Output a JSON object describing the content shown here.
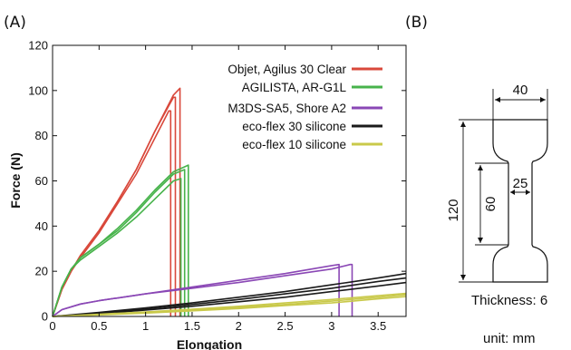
{
  "panel_a_label": "(A)",
  "panel_b_label": "(B)",
  "chart_data": {
    "type": "line",
    "title": "",
    "xlabel": "Elongation",
    "ylabel": "Force (N)",
    "xlim": [
      0,
      3.8
    ],
    "ylim": [
      0,
      120
    ],
    "xticks": [
      "0",
      "0.5",
      "1",
      "1.5",
      "2",
      "2.5",
      "3",
      "3.5"
    ],
    "yticks": [
      "0",
      "20",
      "40",
      "60",
      "80",
      "100",
      "120"
    ],
    "grid": false,
    "legend_position": "top-right",
    "series": [
      {
        "name": "Objet, Agilus 30 Clear",
        "color": "#d9483b",
        "curves": [
          {
            "x": [
              0,
              0.1,
              0.2,
              0.3,
              0.5,
              0.7,
              0.9,
              1.1,
              1.25,
              1.27,
              1.27
            ],
            "y": [
              0,
              12,
              20,
              26,
              37,
              50,
              63,
              79,
              91,
              91,
              0
            ]
          },
          {
            "x": [
              0,
              0.1,
              0.2,
              0.3,
              0.5,
              0.7,
              0.9,
              1.1,
              1.3,
              1.32,
              1.32
            ],
            "y": [
              0,
              12,
              20,
              27,
              38,
              51,
              65,
              82,
              97,
              97,
              0
            ]
          },
          {
            "x": [
              0,
              0.1,
              0.2,
              0.3,
              0.5,
              0.7,
              0.9,
              1.1,
              1.3,
              1.37,
              1.37
            ],
            "y": [
              0,
              12,
              20,
              27,
              38,
              51,
              65,
              82,
              98,
              101,
              0
            ]
          }
        ]
      },
      {
        "name": "AGILISTA, AR-G1L",
        "color": "#47b34b",
        "curves": [
          {
            "x": [
              0,
              0.1,
              0.2,
              0.3,
              0.5,
              0.7,
              0.9,
              1.1,
              1.3,
              1.38,
              1.38
            ],
            "y": [
              0,
              13,
              21,
              25,
              31,
              37,
              44,
              52,
              60,
              61,
              0
            ]
          },
          {
            "x": [
              0,
              0.1,
              0.2,
              0.3,
              0.5,
              0.7,
              0.9,
              1.1,
              1.3,
              1.42,
              1.42
            ],
            "y": [
              0,
              13,
              21,
              26,
              32,
              38,
              46,
              55,
              63,
              65,
              0
            ]
          },
          {
            "x": [
              0,
              0.1,
              0.2,
              0.3,
              0.5,
              0.7,
              0.9,
              1.1,
              1.3,
              1.46,
              1.46
            ],
            "y": [
              0,
              13,
              21,
              26,
              32,
              39,
              47,
              56,
              64,
              67,
              0
            ]
          }
        ]
      },
      {
        "name": "M3DS-SA5, Shore A2",
        "color": "#8a47b5",
        "curves": [
          {
            "x": [
              0,
              0.1,
              0.3,
              0.5,
              1.0,
              1.5,
              2.0,
              2.5,
              3.0,
              3.08,
              3.08
            ],
            "y": [
              0,
              3,
              5.5,
              7,
              10,
              13,
              16,
              19,
              22.5,
              23,
              0
            ]
          },
          {
            "x": [
              0,
              0.1,
              0.3,
              0.5,
              1.0,
              1.5,
              2.0,
              2.5,
              3.0,
              3.2,
              3.22,
              3.22
            ],
            "y": [
              0,
              3,
              5.5,
              7,
              10,
              12.5,
              15,
              18,
              21,
              23,
              23,
              0
            ]
          }
        ]
      },
      {
        "name": "eco-flex 30 silicone",
        "color": "#1a1a1a",
        "curves": [
          {
            "x": [
              0,
              0.5,
              1.0,
              1.5,
              2.0,
              2.5,
              3.0,
              3.5,
              3.8
            ],
            "y": [
              0,
              1.2,
              2.8,
              4.5,
              6.5,
              8.5,
              11,
              13.5,
              15
            ]
          },
          {
            "x": [
              0,
              0.5,
              1.0,
              1.5,
              2.0,
              2.5,
              3.0,
              3.5,
              3.8
            ],
            "y": [
              0,
              1.5,
              3.3,
              5.3,
              7.5,
              10,
              12.5,
              15.5,
              17
            ]
          },
          {
            "x": [
              0,
              0.5,
              1.0,
              1.5,
              2.0,
              2.5,
              3.0,
              3.5,
              3.8
            ],
            "y": [
              0,
              1.8,
              3.8,
              6,
              8.5,
              11,
              14,
              17,
              19
            ]
          }
        ]
      },
      {
        "name": "eco-flex 10 silicone",
        "color": "#c9c94a",
        "curves": [
          {
            "x": [
              0,
              0.5,
              1.0,
              1.5,
              2.0,
              2.5,
              3.0,
              3.5,
              3.8
            ],
            "y": [
              0,
              0.7,
              1.5,
              2.5,
              3.5,
              4.8,
              6,
              7.8,
              8.8
            ]
          },
          {
            "x": [
              0,
              0.5,
              1.0,
              1.5,
              2.0,
              2.5,
              3.0,
              3.5,
              3.8
            ],
            "y": [
              0,
              0.8,
              1.8,
              2.8,
              4,
              5.3,
              6.8,
              8.5,
              9.6
            ]
          },
          {
            "x": [
              0,
              0.5,
              1.0,
              1.5,
              2.0,
              2.5,
              3.0,
              3.5,
              3.8
            ],
            "y": [
              0,
              1,
              2,
              3.2,
              4.5,
              6,
              7.5,
              9.2,
              10.2
            ]
          }
        ]
      }
    ]
  },
  "specimen": {
    "width_top": "40",
    "width_mid": "25",
    "length_total": "120",
    "length_gauge": "60",
    "thickness_note": "Thickness: 6",
    "unit_note": "unit: mm"
  }
}
